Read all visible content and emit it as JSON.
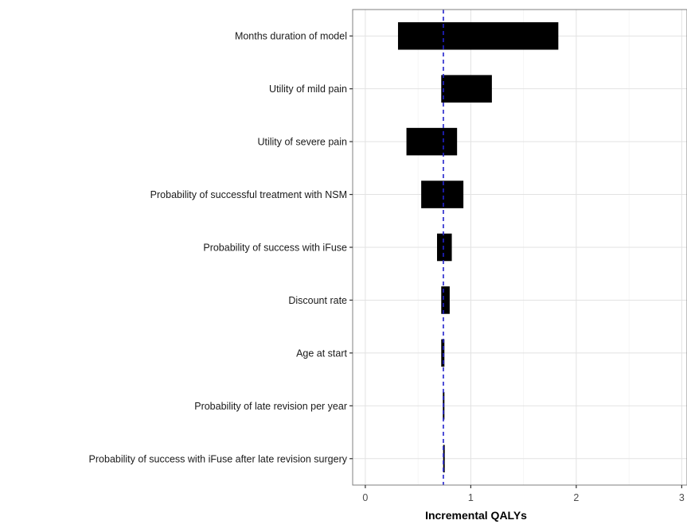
{
  "chart_data": {
    "type": "bar",
    "orientation": "horizontal",
    "subtype": "tornado",
    "xlabel": "Incremental QALYs",
    "ylabel": "",
    "xlim": [
      -0.12,
      3.05
    ],
    "xticks": [
      0,
      1,
      2,
      3
    ],
    "grid": true,
    "baseline": 0.74,
    "categories": [
      "Months duration of model",
      "Utility of mild pain",
      "Utility of severe pain",
      "Probability of successful treatment with NSM",
      "Probability  of success with iFuse",
      "Discount rate",
      "Age at start",
      "Probability of late revision per year",
      "Probability of success with iFuse after late revision surgery"
    ],
    "ranges": [
      [
        0.31,
        1.83
      ],
      [
        0.72,
        1.2
      ],
      [
        0.39,
        0.87
      ],
      [
        0.53,
        0.93
      ],
      [
        0.68,
        0.82
      ],
      [
        0.72,
        0.8
      ],
      [
        0.72,
        0.75
      ],
      [
        0.735,
        0.75
      ],
      [
        0.738,
        0.748
      ]
    ],
    "colors": {
      "bar": "#000000",
      "baseline": "#2222cc",
      "grid_major": "#e2e2e2",
      "grid_minor": "#f2f2f2",
      "panel_border": "#7f7f7f"
    }
  }
}
